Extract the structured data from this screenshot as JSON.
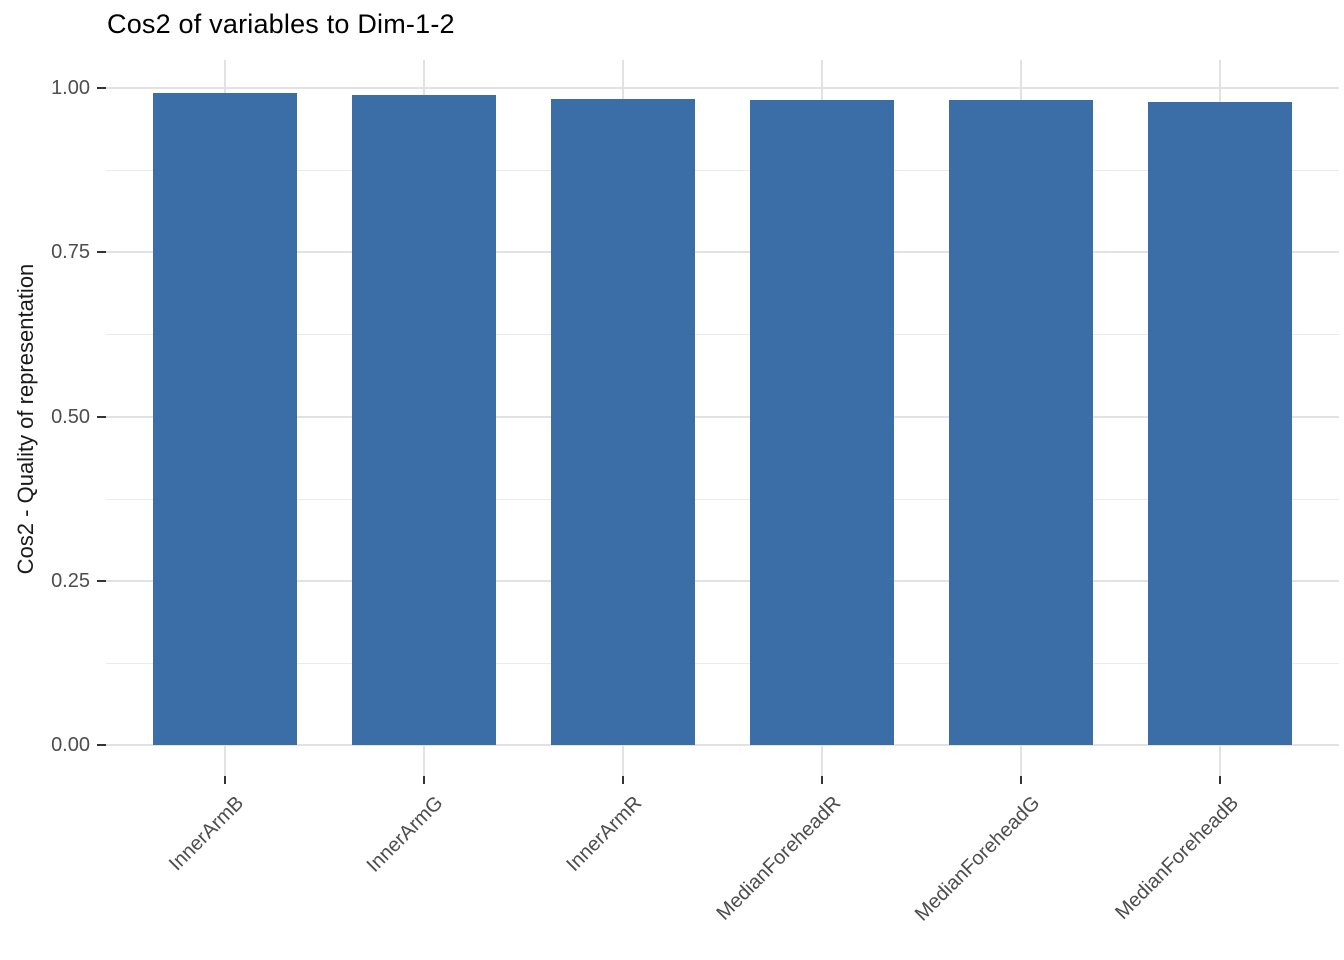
{
  "chart_data": {
    "type": "bar",
    "title": "Cos2 of variables to Dim-1-2",
    "ylabel": "Cos2 - Quality of representation",
    "xlabel": "",
    "categories": [
      "InnerArmB",
      "InnerArmG",
      "InnerArmR",
      "MedianForeheadR",
      "MedianForeheadG",
      "MedianForeheadB"
    ],
    "values": [
      0.993,
      0.99,
      0.984,
      0.982,
      0.982,
      0.978
    ],
    "y_ticks": [
      {
        "label": "1.00",
        "value": 1.0
      },
      {
        "label": "0.75",
        "value": 0.75
      },
      {
        "label": "0.50",
        "value": 0.5
      },
      {
        "label": "0.25",
        "value": 0.25
      },
      {
        "label": "0.00",
        "value": 0.0
      }
    ],
    "y_minor_gridlines": [
      0.875,
      0.625,
      0.375,
      0.125
    ],
    "ylim": [
      0,
      1.04
    ],
    "grid": true,
    "legend_position": "none",
    "colors": {
      "bar_fill": "#3b6da7",
      "grid_major": "#e2e2e2",
      "grid_minor": "#eaeaea",
      "tick_mark": "#333333",
      "axis_text": "#4d4d4d",
      "title_text": "#000000"
    }
  }
}
